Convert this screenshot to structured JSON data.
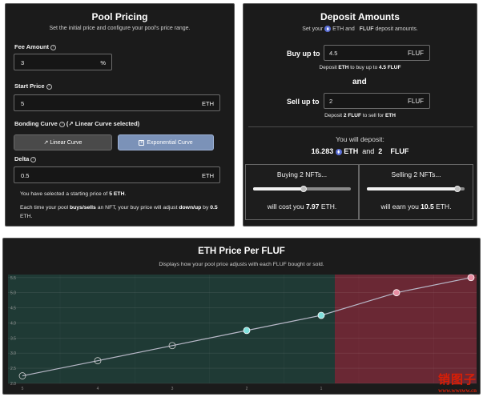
{
  "pool": {
    "title": "Pool Pricing",
    "subtitle": "Set the initial price and configure your pool's price range.",
    "fee_label": "Fee Amount",
    "fee_value": "3",
    "fee_unit": "%",
    "start_label": "Start Price",
    "start_value": "5",
    "start_unit": "ETH",
    "curve_label": "Bonding Curve",
    "curve_selected": "(↗ Linear Curve selected)",
    "linear_btn": "↗ Linear Curve",
    "exp_btn": "Exponential Curve",
    "delta_label": "Delta",
    "delta_value": "0.5",
    "delta_unit": "ETH",
    "note1_a": "You have selected a starting price of ",
    "note1_b": "5 ETH",
    "note1_c": ".",
    "note2_a": "Each time your pool ",
    "note2_b": "buys/sells",
    "note2_c": " an NFT, your buy price will adjust ",
    "note2_d": "down/up",
    "note2_e": " by ",
    "note2_f": "0.5",
    "note2_g": " ETH."
  },
  "deposit": {
    "title": "Deposit Amounts",
    "sub_a": "Set your",
    "sub_b": "ETH and",
    "sub_c": "FLUF",
    "sub_d": "deposit amounts.",
    "buy_label": "Buy up to",
    "buy_value": "4.5",
    "buy_unit": "FLUF",
    "buy_note_a": "Deposit ",
    "buy_note_b": "ETH",
    "buy_note_c": " to buy up to ",
    "buy_note_d": "4.5 FLUF",
    "and": "and",
    "sell_label": "Sell up to",
    "sell_value": "2",
    "sell_unit": "FLUF",
    "sell_note_a": "Deposit ",
    "sell_note_b": "2 FLUF",
    "sell_note_c": " to sell for ",
    "sell_note_d": "ETH",
    "will_deposit": "You will deposit:",
    "dep_eth": "16.283",
    "dep_eth_unit": "ETH",
    "dep_and": "and",
    "dep_fluf": "2",
    "dep_fluf_unit": "FLUF",
    "buying_title": "Buying 2 NFTs...",
    "buying_level": 0.52,
    "buying_foot_a": "will cost you ",
    "buying_foot_b": "7.97",
    "buying_foot_c": " ETH.",
    "selling_title": "Selling 2 NFTs...",
    "selling_level": 0.93,
    "selling_foot_a": "will earn you ",
    "selling_foot_b": "10.5",
    "selling_foot_c": " ETH."
  },
  "chart": {
    "title": "ETH Price Per FLUF",
    "subtitle": "Displays how your pool price adjusts with each FLUF bought or sold."
  },
  "chart_data": {
    "type": "line",
    "title": "ETH Price Per FLUF",
    "subtitle": "Displays how your pool price adjusts with each FLUF bought or sold.",
    "y_ticks": [
      "2.0",
      "2.5",
      "3.0",
      "3.5",
      "4.0",
      "4.5",
      "5.0",
      "5.5"
    ],
    "x_ticks": [
      "5",
      "4",
      "3",
      "2",
      "1",
      ""
    ],
    "ylim": [
      2.0,
      5.6
    ],
    "points": [
      {
        "x": 0,
        "y": 2.25,
        "side": "buy",
        "current": false
      },
      {
        "x": 1,
        "y": 2.75,
        "side": "buy",
        "current": false
      },
      {
        "x": 2,
        "y": 3.25,
        "side": "buy",
        "current": false
      },
      {
        "x": 3,
        "y": 3.75,
        "side": "buy",
        "current": true
      },
      {
        "x": 4,
        "y": 4.25,
        "side": "buy",
        "current": true
      },
      {
        "x": 5,
        "y": 5.0,
        "side": "sell",
        "current": true
      },
      {
        "x": 6,
        "y": 5.5,
        "side": "sell",
        "current": true
      }
    ],
    "colors": {
      "buy_region": "#1f3a35",
      "sell_region": "#6a2834",
      "line": "#b8b8c8",
      "buy_marker": "#7fe0dc",
      "sell_marker": "#e88fa4"
    }
  },
  "watermark": {
    "line1": "销图子",
    "line2": "www.wwsww.cn"
  }
}
